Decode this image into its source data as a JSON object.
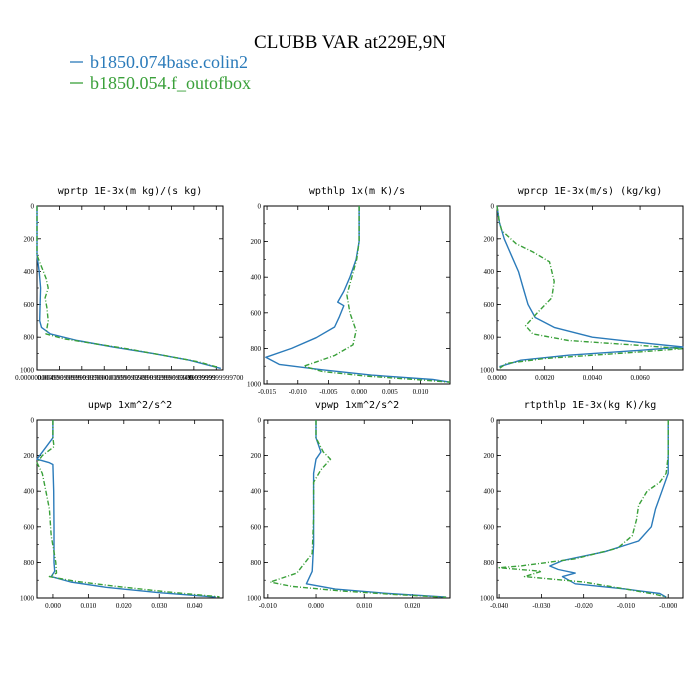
{
  "title": "CLUBB VAR at229E,9N",
  "legend": [
    {
      "name": "b1850.074base.colin2",
      "color": "#2b7bba",
      "dash": "none"
    },
    {
      "name": "b1850.054.f_outofbox",
      "color": "#3aa03a",
      "dash": "5,2,1,2"
    }
  ],
  "chart_data": [
    {
      "type": "line",
      "title": "wprtp  1E-3x(m kg)/(s kg)",
      "xlim": [
        0,
        0.0415
      ],
      "ylim": [
        1000,
        0
      ],
      "xticks": [
        0,
        0.005,
        0.01,
        0.015,
        0.02,
        0.025,
        0.03,
        0.035,
        0.04
      ],
      "xticklabels": [
        "0.00000000000",
        "0.00499999999",
        "0.00999999999",
        "0.01500000000",
        "0.01999999999",
        "0.02499999999",
        "0.02999999999",
        "0.03499999999",
        "0.03999999999700"
      ],
      "yticks": [
        0,
        200,
        400,
        600,
        800,
        1000
      ],
      "series": [
        {
          "name": "b1850.074base.colin2",
          "points": [
            [
              0,
              0
            ],
            [
              0,
              100
            ],
            [
              0,
              200
            ],
            [
              0,
              300
            ],
            [
              0.0005,
              400
            ],
            [
              0.0008,
              500
            ],
            [
              0.0007,
              600
            ],
            [
              0.0006,
              700
            ],
            [
              0.001,
              740
            ],
            [
              0.003,
              780
            ],
            [
              0.009,
              820
            ],
            [
              0.017,
              860
            ],
            [
              0.026,
              900
            ],
            [
              0.034,
              940
            ],
            [
              0.041,
              990
            ]
          ]
        },
        {
          "name": "b1850.054.f_outofbox",
          "points": [
            [
              0,
              0
            ],
            [
              0,
              100
            ],
            [
              0,
              200
            ],
            [
              0,
              300
            ],
            [
              0.001,
              370
            ],
            [
              0.002,
              440
            ],
            [
              0.0025,
              500
            ],
            [
              0.0018,
              560
            ],
            [
              0.0022,
              620
            ],
            [
              0.0025,
              700
            ],
            [
              0.002,
              780
            ],
            [
              0.006,
              810
            ],
            [
              0.013,
              840
            ],
            [
              0.02,
              870
            ],
            [
              0.028,
              910
            ],
            [
              0.036,
              950
            ],
            [
              0.0405,
              985
            ]
          ]
        }
      ]
    },
    {
      "type": "line",
      "title": "wpthlp  1x(m K)/s",
      "xlim": [
        -0.0155,
        0.0148
      ],
      "ylim": [
        1000,
        0
      ],
      "xticks": [
        -0.015,
        -0.01,
        -0.005,
        0,
        0.005,
        0.01
      ],
      "xticklabels": [
        "-0.015",
        "-0.010",
        "-0.005",
        "0.000",
        "0.005",
        "0.010"
      ],
      "yticks": [
        0,
        200,
        400,
        600,
        800,
        1000
      ],
      "series": [
        {
          "name": "b1850.074base.colin2",
          "points": [
            [
              0,
              0
            ],
            [
              0,
              100
            ],
            [
              0,
              200
            ],
            [
              -0.0005,
              300
            ],
            [
              -0.0015,
              400
            ],
            [
              -0.0025,
              480
            ],
            [
              -0.0035,
              540
            ],
            [
              -0.0025,
              560
            ],
            [
              -0.0032,
              620
            ],
            [
              -0.004,
              680
            ],
            [
              -0.007,
              740
            ],
            [
              -0.011,
              800
            ],
            [
              -0.0152,
              850
            ],
            [
              -0.013,
              890
            ],
            [
              -0.006,
              920
            ],
            [
              0.002,
              950
            ],
            [
              0.012,
              975
            ],
            [
              0.0148,
              990
            ]
          ]
        },
        {
          "name": "b1850.054.f_outofbox",
          "points": [
            [
              0,
              0
            ],
            [
              0,
              100
            ],
            [
              0,
              200
            ],
            [
              -0.0004,
              300
            ],
            [
              -0.0012,
              400
            ],
            [
              -0.002,
              500
            ],
            [
              -0.0015,
              600
            ],
            [
              -0.0005,
              700
            ],
            [
              -0.001,
              780
            ],
            [
              -0.004,
              840
            ],
            [
              -0.009,
              900
            ],
            [
              -0.006,
              930
            ],
            [
              0.001,
              955
            ],
            [
              0.009,
              975
            ],
            [
              0.0148,
              990
            ]
          ]
        }
      ]
    },
    {
      "type": "line",
      "title": "wprcp  1E-3x(m/s) (kg/kg)",
      "xlim": [
        0,
        0.0078
      ],
      "ylim": [
        1000,
        0
      ],
      "xticks": [
        0,
        0.002,
        0.004,
        0.006
      ],
      "xticklabels": [
        "0.0000",
        "0.0020",
        "0.0040",
        "0.0060"
      ],
      "yticks": [
        0,
        200,
        400,
        600,
        800,
        1000
      ],
      "series": [
        {
          "name": "b1850.074base.colin2",
          "points": [
            [
              0,
              0
            ],
            [
              0.0001,
              100
            ],
            [
              0.0003,
              200
            ],
            [
              0.0006,
              300
            ],
            [
              0.0009,
              400
            ],
            [
              0.0011,
              500
            ],
            [
              0.0013,
              600
            ],
            [
              0.0016,
              680
            ],
            [
              0.0024,
              740
            ],
            [
              0.004,
              800
            ],
            [
              0.0065,
              840
            ],
            [
              0.0078,
              860
            ],
            [
              0.006,
              880
            ],
            [
              0.003,
              910
            ],
            [
              0.001,
              940
            ],
            [
              0.0001,
              980
            ]
          ]
        },
        {
          "name": "b1850.054.f_outofbox",
          "points": [
            [
              0,
              0
            ],
            [
              0.0001,
              100
            ],
            [
              0.0002,
              150
            ],
            [
              0.0008,
              230
            ],
            [
              0.0015,
              280
            ],
            [
              0.0022,
              340
            ],
            [
              0.0024,
              460
            ],
            [
              0.0023,
              560
            ],
            [
              0.0017,
              650
            ],
            [
              0.0012,
              730
            ],
            [
              0.0015,
              780
            ],
            [
              0.003,
              820
            ],
            [
              0.006,
              850
            ],
            [
              0.0078,
              870
            ],
            [
              0.005,
              900
            ],
            [
              0.002,
              930
            ],
            [
              0.0004,
              960
            ],
            [
              0.0001,
              990
            ]
          ]
        }
      ]
    },
    {
      "type": "line",
      "title": "upwp  1xm^2/s^2",
      "xlim": [
        -0.0045,
        0.048
      ],
      "ylim": [
        1000,
        0
      ],
      "xticks": [
        0,
        0.01,
        0.02,
        0.03,
        0.04
      ],
      "xticklabels": [
        "0.000",
        "0.010",
        "0.020",
        "0.030",
        "0.040"
      ],
      "yticks": [
        0,
        200,
        400,
        600,
        800,
        1000
      ],
      "series": [
        {
          "name": "b1850.074base.colin2",
          "points": [
            [
              0,
              0
            ],
            [
              0,
              100
            ],
            [
              -0.0045,
              220
            ],
            [
              -0.001,
              240
            ],
            [
              0,
              250
            ],
            [
              0.0002,
              400
            ],
            [
              0.0003,
              600
            ],
            [
              0.0003,
              800
            ],
            [
              0.0005,
              850
            ],
            [
              -0.0005,
              880
            ],
            [
              0.005,
              910
            ],
            [
              0.015,
              940
            ],
            [
              0.03,
              970
            ],
            [
              0.046,
              995
            ]
          ]
        },
        {
          "name": "b1850.054.f_outofbox",
          "points": [
            [
              0,
              0
            ],
            [
              0,
              100
            ],
            [
              0.0003,
              150
            ],
            [
              -0.003,
              200
            ],
            [
              -0.0045,
              240
            ],
            [
              -0.003,
              300
            ],
            [
              -0.002,
              400
            ],
            [
              -0.001,
              500
            ],
            [
              -0.0005,
              650
            ],
            [
              0.0008,
              800
            ],
            [
              0.001,
              860
            ],
            [
              -0.001,
              880
            ],
            [
              0.006,
              905
            ],
            [
              0.018,
              935
            ],
            [
              0.032,
              965
            ],
            [
              0.047,
              993
            ]
          ]
        }
      ]
    },
    {
      "type": "line",
      "title": "vpwp  1xm^2/s^2",
      "xlim": [
        -0.0108,
        0.0278
      ],
      "ylim": [
        1000,
        0
      ],
      "xticks": [
        -0.01,
        0,
        0.01,
        0.02
      ],
      "xticklabels": [
        "-0.010",
        "0.000",
        "0.010",
        "0.020"
      ],
      "yticks": [
        0,
        200,
        400,
        600,
        800,
        1000
      ],
      "series": [
        {
          "name": "b1850.074base.colin2",
          "points": [
            [
              0,
              0
            ],
            [
              0,
              100
            ],
            [
              0.001,
              180
            ],
            [
              0,
              220
            ],
            [
              -0.0005,
              300
            ],
            [
              -0.0005,
              500
            ],
            [
              -0.0005,
              700
            ],
            [
              -0.0008,
              850
            ],
            [
              -0.002,
              920
            ],
            [
              0.004,
              950
            ],
            [
              0.015,
              975
            ],
            [
              0.027,
              995
            ]
          ]
        },
        {
          "name": "b1850.054.f_outofbox",
          "points": [
            [
              0,
              0
            ],
            [
              0,
              100
            ],
            [
              0.0015,
              180
            ],
            [
              0.003,
              220
            ],
            [
              0.001,
              280
            ],
            [
              -0.0005,
              350
            ],
            [
              -0.0005,
              550
            ],
            [
              -0.0008,
              750
            ],
            [
              -0.004,
              860
            ],
            [
              -0.0095,
              910
            ],
            [
              -0.005,
              935
            ],
            [
              0.005,
              960
            ],
            [
              0.016,
              980
            ],
            [
              0.027,
              996
            ]
          ]
        }
      ]
    },
    {
      "type": "line",
      "title": "rtpthlp  1E-3x(kg K)/kg",
      "xlim": [
        -0.0405,
        0.0035
      ],
      "ylim": [
        1000,
        0
      ],
      "xticks": [
        -0.04,
        -0.03,
        -0.02,
        -0.01,
        0
      ],
      "xticklabels": [
        "-0.040",
        "-0.030",
        "-0.020",
        "-0.010",
        "-0.000"
      ],
      "yticks": [
        0,
        200,
        400,
        600,
        800,
        1000
      ],
      "series": [
        {
          "name": "b1850.074base.colin2",
          "points": [
            [
              0,
              0
            ],
            [
              0,
              200
            ],
            [
              0,
              300
            ],
            [
              -0.0015,
              400
            ],
            [
              -0.003,
              500
            ],
            [
              -0.004,
              600
            ],
            [
              -0.007,
              680
            ],
            [
              -0.015,
              740
            ],
            [
              -0.025,
              790
            ],
            [
              -0.028,
              820
            ],
            [
              -0.026,
              840
            ],
            [
              -0.022,
              860
            ],
            [
              -0.025,
              880
            ],
            [
              -0.022,
              920
            ],
            [
              -0.01,
              950
            ],
            [
              -0.002,
              975
            ],
            [
              -0.0005,
              995
            ]
          ]
        },
        {
          "name": "b1850.054.f_outofbox",
          "points": [
            [
              0,
              0
            ],
            [
              0,
              200
            ],
            [
              -0.0005,
              300
            ],
            [
              -0.002,
              350
            ],
            [
              -0.005,
              400
            ],
            [
              -0.007,
              480
            ],
            [
              -0.0075,
              560
            ],
            [
              -0.0085,
              650
            ],
            [
              -0.012,
              720
            ],
            [
              -0.022,
              780
            ],
            [
              -0.035,
              820
            ],
            [
              -0.04,
              830
            ],
            [
              -0.03,
              850
            ],
            [
              -0.034,
              880
            ],
            [
              -0.02,
              910
            ],
            [
              -0.01,
              950
            ],
            [
              -0.003,
              980
            ],
            [
              -0.0005,
              995
            ]
          ]
        }
      ]
    }
  ]
}
